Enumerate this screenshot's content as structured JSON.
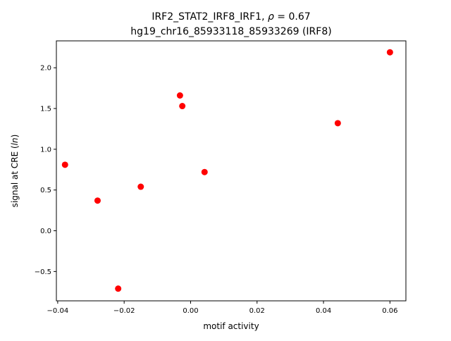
{
  "chart_data": {
    "type": "scatter",
    "title_line1_prefix": "IRF2_STAT2_IRF8_IRF1, ",
    "title_line1_rho": "ρ",
    "title_line1_suffix": " = 0.67",
    "title_line2": "hg19_chr16_85933118_85933269 (IRF8)",
    "xlabel": "motif activity",
    "ylabel_prefix": "signal at CRE (",
    "ylabel_italic": "ln",
    "ylabel_suffix": ")",
    "xlim": [
      -0.0404,
      0.0648
    ],
    "ylim": [
      -0.86,
      2.33
    ],
    "x_ticks": [
      -0.04,
      -0.02,
      0.0,
      0.02,
      0.04,
      0.06
    ],
    "x_tick_labels": [
      "−0.04",
      "−0.02",
      "0.00",
      "0.02",
      "0.04",
      "0.06"
    ],
    "y_ticks": [
      -0.5,
      0.0,
      0.5,
      1.0,
      1.5,
      2.0
    ],
    "y_tick_labels": [
      "−0.5",
      "0.0",
      "0.5",
      "1.0",
      "1.5",
      "2.0"
    ],
    "grid": false,
    "marker_color": "#ff0000",
    "points": [
      {
        "x": -0.0378,
        "y": 0.81
      },
      {
        "x": -0.028,
        "y": 0.37
      },
      {
        "x": -0.0218,
        "y": -0.71
      },
      {
        "x": -0.015,
        "y": 0.54
      },
      {
        "x": -0.0032,
        "y": 1.66
      },
      {
        "x": -0.0025,
        "y": 1.53
      },
      {
        "x": 0.0042,
        "y": 0.72
      },
      {
        "x": 0.0443,
        "y": 1.32
      },
      {
        "x": 0.06,
        "y": 2.19
      }
    ]
  }
}
